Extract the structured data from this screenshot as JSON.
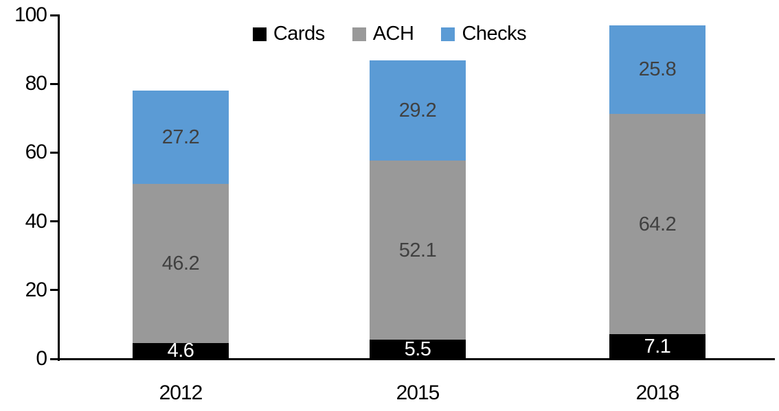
{
  "chart_data": {
    "type": "bar",
    "stacked": true,
    "title": "",
    "xlabel": "",
    "ylabel": "",
    "categories": [
      "2012",
      "2015",
      "2018"
    ],
    "series": [
      {
        "name": "Cards",
        "color": "#000000",
        "label_color": "#ffffff",
        "values": [
          4.6,
          5.5,
          7.1
        ]
      },
      {
        "name": "ACH",
        "color": "#999999",
        "label_color": "#404040",
        "values": [
          46.2,
          52.1,
          64.2
        ]
      },
      {
        "name": "Checks",
        "color": "#5B9BD5",
        "label_color": "#404040",
        "values": [
          27.2,
          29.2,
          25.8
        ]
      }
    ],
    "stack_totals": [
      78.0,
      86.8,
      97.1
    ],
    "ylim": [
      0,
      100
    ],
    "yticks": [
      0,
      20,
      40,
      60,
      80,
      100
    ],
    "grid": false,
    "data_labels": true,
    "legend_position": "top",
    "legend": [
      {
        "label": "Cards",
        "color": "#000000"
      },
      {
        "label": "ACH",
        "color": "#999999"
      },
      {
        "label": "Checks",
        "color": "#5B9BD5"
      }
    ],
    "axis_color": "#000000",
    "background_color": "#ffffff"
  }
}
